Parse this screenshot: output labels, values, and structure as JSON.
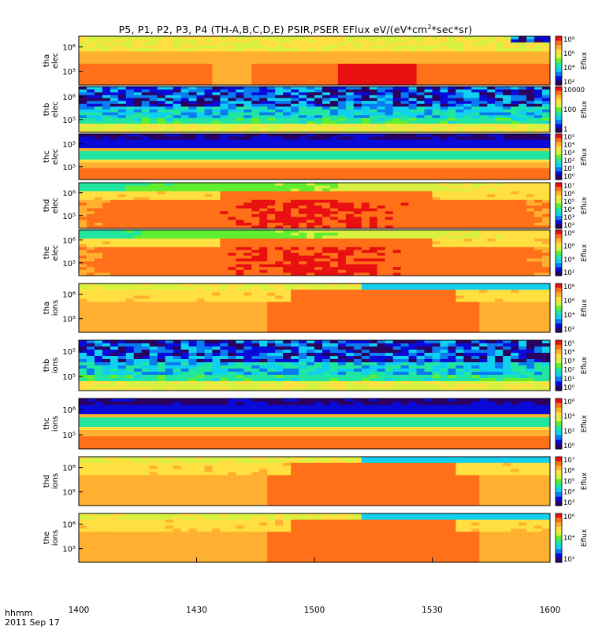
{
  "title": {
    "main": "P5, P1, P2, P3, P4 (TH-A,B,C,D,E) PSIR,PSER EFlux eV/(eV*cm",
    "sup": "2",
    "rest": "*sec*sr)"
  },
  "footer": {
    "time_format": "hhmm",
    "date": "2011 Sep 17"
  },
  "chart_data": {
    "type": "heatmap",
    "x_axis": {
      "ticks": [
        "1400",
        "1430",
        "1500",
        "1530",
        "1600"
      ],
      "range": [
        "14:00",
        "16:00"
      ]
    },
    "colormap": [
      "#2a0060",
      "#0a0ad8",
      "#0a7cf2",
      "#10d0f0",
      "#20e6a0",
      "#60ef30",
      "#d8f040",
      "#ffe040",
      "#ffb030",
      "#ff7018",
      "#e81010"
    ],
    "panels": [
      {
        "probe": "tha",
        "species": "elec",
        "y_ticks": [
          "10⁶",
          "10⁵"
        ],
        "cbar_ticks": [
          "10⁸",
          "10⁶",
          "10⁴",
          "10²"
        ],
        "cbar_label": "Eflux",
        "features": {
          "low_energy_band": [
            0.55,
            0.55,
            0.65,
            0.45,
            0.5,
            0.78,
            0.95,
            0.95,
            0.9,
            0.85,
            0.75
          ],
          "noisy_top_band_start": 0.92
        }
      },
      {
        "probe": "thb",
        "species": "elec",
        "y_ticks": [
          "10⁶",
          "10⁵"
        ],
        "cbar_ticks": [
          "10000",
          "100",
          "1"
        ],
        "cbar_label": "Eflux",
        "features": {
          "noisy": true
        }
      },
      {
        "probe": "thc",
        "species": "elec",
        "y_ticks": [
          "10⁵",
          "10⁵"
        ],
        "cbar_ticks": [
          "10⁵",
          "10⁴",
          "10³",
          "10²",
          "10¹",
          "10⁰"
        ],
        "cbar_label": "Eflux",
        "features": {
          "banded": true
        }
      },
      {
        "probe": "thd",
        "species": "elec",
        "y_ticks": [
          "10⁶",
          "10⁵"
        ],
        "cbar_ticks": [
          "10⁷",
          "10⁶",
          "10⁵",
          "10⁴",
          "10³",
          "10²"
        ],
        "cbar_label": "Eflux",
        "features": {
          "hot_core": true
        }
      },
      {
        "probe": "the",
        "species": "elec",
        "y_ticks": [
          "10⁶",
          "10⁵"
        ],
        "cbar_ticks": [
          "10⁸",
          "10⁶",
          "10⁴",
          "10²"
        ],
        "cbar_label": "Eflux",
        "features": {
          "hot_core": true
        }
      },
      {
        "probe": "tha",
        "species": "ions",
        "y_ticks": [
          "10⁶",
          "10⁵"
        ],
        "cbar_ticks": [
          "10⁸",
          "10⁶",
          "10⁴",
          "10²"
        ],
        "cbar_label": "Eflux",
        "features": {
          "warm": true
        }
      },
      {
        "probe": "thb",
        "species": "ions",
        "y_ticks": [
          "10⁵",
          "10⁵"
        ],
        "cbar_ticks": [
          "10⁵",
          "10⁴",
          "10³",
          "10²",
          "10¹",
          "10⁰"
        ],
        "cbar_label": "Eflux",
        "features": {
          "noisy": true
        }
      },
      {
        "probe": "thc",
        "species": "ions",
        "y_ticks": [
          "10⁶",
          "10⁵"
        ],
        "cbar_ticks": [
          "10⁶",
          "10⁴",
          "10²",
          "10⁰"
        ],
        "cbar_label": "Eflux",
        "features": {
          "banded": true
        }
      },
      {
        "probe": "thd",
        "species": "ions",
        "y_ticks": [
          "10⁶",
          "10⁵"
        ],
        "cbar_ticks": [
          "10⁷",
          "10⁶",
          "10⁵",
          "10⁴",
          "10³"
        ],
        "cbar_label": "Eflux",
        "features": {
          "warm": true
        }
      },
      {
        "probe": "the",
        "species": "ions",
        "y_ticks": [
          "10⁶",
          "10⁵"
        ],
        "cbar_ticks": [
          "10⁶",
          "10⁴",
          "10²"
        ],
        "cbar_label": "Eflux",
        "features": {
          "warm": true
        }
      }
    ]
  }
}
